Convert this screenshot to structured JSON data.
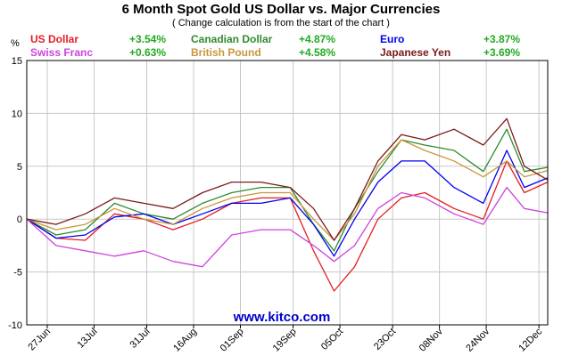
{
  "chart_data": {
    "type": "line",
    "title": "6 Month Spot Gold US Dollar vs. Major Currencies",
    "subtitle": "( Change calculation is from the start of the chart )",
    "ylabel": "%",
    "ylim": [
      -10,
      15
    ],
    "yticks": [
      15,
      10,
      5,
      0,
      -5,
      -10
    ],
    "xlabels": [
      {
        "date": "2019-06-27",
        "label": "27Jun"
      },
      {
        "date": "2019-07-13",
        "label": "13Jul"
      },
      {
        "date": "2019-07-31",
        "label": "31Jul"
      },
      {
        "date": "2019-08-16",
        "label": "16Aug"
      },
      {
        "date": "2019-09-01",
        "label": "01Sep"
      },
      {
        "date": "2019-09-19",
        "label": "19Sep"
      },
      {
        "date": "2019-10-05",
        "label": "05Oct"
      },
      {
        "date": "2019-10-23",
        "label": "23Oct"
      },
      {
        "date": "2019-11-08",
        "label": "08Nov"
      },
      {
        "date": "2019-11-24",
        "label": "24Nov"
      },
      {
        "date": "2019-12-12",
        "label": "12Dec"
      }
    ],
    "xlim": [
      "2019-06-20",
      "2019-12-15"
    ],
    "grid": true,
    "legend_position": "top",
    "x": [
      "2019-06-20",
      "2019-06-30",
      "2019-07-10",
      "2019-07-20",
      "2019-07-30",
      "2019-08-09",
      "2019-08-19",
      "2019-08-29",
      "2019-09-08",
      "2019-09-18",
      "2019-09-26",
      "2019-10-03",
      "2019-10-10",
      "2019-10-18",
      "2019-10-26",
      "2019-11-03",
      "2019-11-13",
      "2019-11-23",
      "2019-12-01",
      "2019-12-07",
      "2019-12-15"
    ],
    "series": [
      {
        "name": "US Dollar",
        "change": "+3.54%",
        "color": "#e31e24",
        "values": [
          0.0,
          -1.8,
          -2.0,
          0.5,
          0.0,
          -1.0,
          0.0,
          1.5,
          2.0,
          2.0,
          -3.0,
          -6.8,
          -4.5,
          0.0,
          2.0,
          2.5,
          1.0,
          0.0,
          5.5,
          2.5,
          3.5
        ]
      },
      {
        "name": "Canadian Dollar",
        "change": "+4.87%",
        "color": "#2e8b2e",
        "values": [
          0.0,
          -1.5,
          -1.0,
          1.5,
          0.5,
          0.0,
          1.5,
          2.5,
          3.0,
          3.0,
          -0.5,
          -3.0,
          1.0,
          4.5,
          7.5,
          7.0,
          6.5,
          4.5,
          8.5,
          4.5,
          4.9
        ]
      },
      {
        "name": "Euro",
        "change": "+3.87%",
        "color": "#0000ee",
        "values": [
          0.0,
          -1.8,
          -1.5,
          0.2,
          0.5,
          -0.5,
          0.5,
          1.5,
          1.5,
          2.0,
          -0.5,
          -3.5,
          0.0,
          3.5,
          5.5,
          5.5,
          3.0,
          1.5,
          6.5,
          3.0,
          3.9
        ]
      },
      {
        "name": "Swiss Franc",
        "change": "+0.63%",
        "color": "#cc44dd",
        "values": [
          0.0,
          -2.5,
          -3.0,
          -3.5,
          -3.0,
          -4.0,
          -4.5,
          -1.5,
          -1.0,
          -1.0,
          -2.5,
          -4.0,
          -2.5,
          1.0,
          2.5,
          2.0,
          0.5,
          -0.5,
          3.0,
          1.0,
          0.6
        ]
      },
      {
        "name": "British Pound",
        "change": "+4.58%",
        "color": "#c8963c",
        "values": [
          0.0,
          -1.0,
          -0.5,
          1.0,
          0.0,
          -0.5,
          1.0,
          2.0,
          2.5,
          2.5,
          0.0,
          -2.0,
          0.5,
          5.0,
          7.5,
          6.5,
          5.5,
          4.0,
          5.5,
          4.0,
          4.6
        ]
      },
      {
        "name": "Japanese Yen",
        "change": "+3.69%",
        "color": "#7a1a1a",
        "values": [
          0.0,
          -0.5,
          0.5,
          2.0,
          1.5,
          1.0,
          2.5,
          3.5,
          3.5,
          3.0,
          1.0,
          -2.0,
          1.0,
          5.5,
          8.0,
          7.5,
          8.5,
          7.0,
          9.5,
          5.0,
          3.7
        ]
      }
    ]
  },
  "watermark": "www.kitco.com"
}
